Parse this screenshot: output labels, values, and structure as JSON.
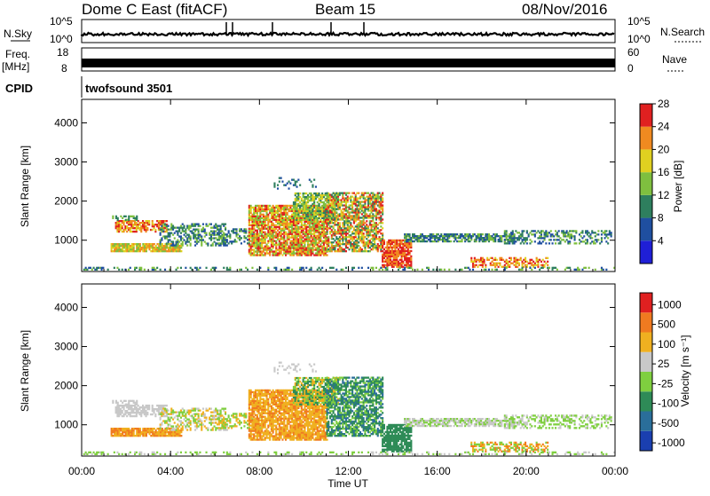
{
  "header": {
    "title": "Dome C East (fitACF)",
    "beam": "Beam 15",
    "date": "08/Nov/2016"
  },
  "strip_nsky": {
    "left_label": "N.Sky",
    "right_label": "N.Search",
    "ticks_left": [
      "10^5",
      "10^0"
    ],
    "ticks_right": [
      "10^5",
      "10^0"
    ]
  },
  "strip_freq": {
    "left_label_line1": "Freq.",
    "left_label_line2": "[MHz]",
    "right_label": "Nave",
    "ticks_left": [
      "18",
      "8"
    ],
    "ticks_right": [
      "60",
      "0"
    ]
  },
  "cpid": {
    "label": "CPID",
    "value": "twofsound 3501"
  },
  "x_axis": {
    "label": "Time UT",
    "ticks": [
      "00:00",
      "04:00",
      "08:00",
      "12:00",
      "16:00",
      "20:00",
      "00:00"
    ]
  },
  "chart_data": [
    {
      "type": "heatmap",
      "name": "power",
      "x": [
        "00:00",
        "04:00",
        "08:00",
        "12:00",
        "16:00",
        "20:00",
        "00:00"
      ],
      "ylabel": "Slant Range [km]",
      "yticks": [
        1000,
        2000,
        3000,
        4000
      ],
      "ylim": [
        200,
        4600
      ],
      "colorbar_label": "Power [dB]",
      "colorbar_ticks": [
        "4",
        "8",
        "12",
        "16",
        "20",
        "24",
        "28"
      ],
      "colorbar_colors": [
        "#1f1fd6",
        "#1f4fa0",
        "#2e7f5e",
        "#7fbf3f",
        "#e0d020",
        "#f08a20",
        "#e02020"
      ]
    },
    {
      "type": "heatmap",
      "name": "velocity",
      "x": [
        "00:00",
        "04:00",
        "08:00",
        "12:00",
        "16:00",
        "20:00",
        "00:00"
      ],
      "ylabel": "Slant Range [km]",
      "yticks": [
        1000,
        2000,
        3000,
        4000
      ],
      "ylim": [
        200,
        4600
      ],
      "colorbar_label": "Velocity [m s⁻¹]",
      "colorbar_ticks": [
        "1000",
        "500",
        "100",
        "25",
        "-25",
        "-100",
        "-500",
        "-1000"
      ],
      "colorbar_colors": [
        "#1a3fb0",
        "#2a6e9a",
        "#2e8b57",
        "#7fcf3f",
        "#c8c8c8",
        "#f0b020",
        "#f07a20",
        "#e02020"
      ]
    }
  ]
}
